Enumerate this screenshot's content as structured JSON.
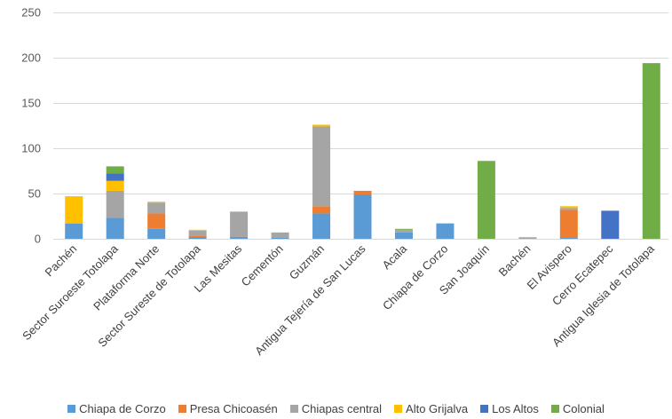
{
  "chart_data": {
    "type": "bar",
    "stacked": true,
    "title": "",
    "xlabel": "",
    "ylabel": "",
    "ylim": [
      0,
      250
    ],
    "yticks": [
      0,
      50,
      100,
      150,
      200,
      250
    ],
    "grid": true,
    "legend_position": "bottom",
    "categories": [
      "Pachén",
      "Sector Suroeste Totolapa",
      "Plataforma Norte",
      "Sector Sureste de Totolapa",
      "Las Mesitas",
      "Cementón",
      "Guzmán",
      "Antigua Tejería de San Lucas",
      "Acala",
      "Chiapa de Corzo",
      "San Joaquín",
      "Bachén",
      "El Avispero",
      "Cerro Ecatepec",
      "Antigua Iglesia de Totolapa"
    ],
    "series": [
      {
        "name": "Chiapa de Corzo",
        "color": "#5b9bd5",
        "values": [
          17,
          23,
          11,
          2,
          2,
          1,
          28,
          49,
          7,
          17,
          0,
          0,
          1,
          0,
          0
        ]
      },
      {
        "name": "Presa Chicoasén",
        "color": "#ed7d31",
        "values": [
          0,
          0,
          17,
          1,
          0,
          0,
          8,
          4,
          0,
          0,
          0,
          0,
          31,
          0,
          0
        ]
      },
      {
        "name": "Chiapas central",
        "color": "#a5a5a5",
        "values": [
          0,
          30,
          12,
          6,
          28,
          6,
          88,
          0,
          3,
          0,
          0,
          1,
          2,
          0,
          0
        ]
      },
      {
        "name": "Alto Grijalva",
        "color": "#ffc000",
        "values": [
          30,
          11,
          1,
          1,
          0,
          0,
          2,
          0,
          0,
          0,
          0,
          1,
          2,
          0,
          0
        ]
      },
      {
        "name": "Los Altos",
        "color": "#4472c4",
        "values": [
          0,
          8,
          0,
          0,
          0,
          0,
          0,
          0,
          0,
          0,
          0,
          0,
          0,
          31,
          0
        ]
      },
      {
        "name": "Colonial",
        "color": "#70ad47",
        "values": [
          0,
          8,
          0,
          0,
          0,
          0,
          0,
          0,
          1,
          0,
          86,
          0,
          0,
          0,
          194
        ]
      }
    ]
  }
}
